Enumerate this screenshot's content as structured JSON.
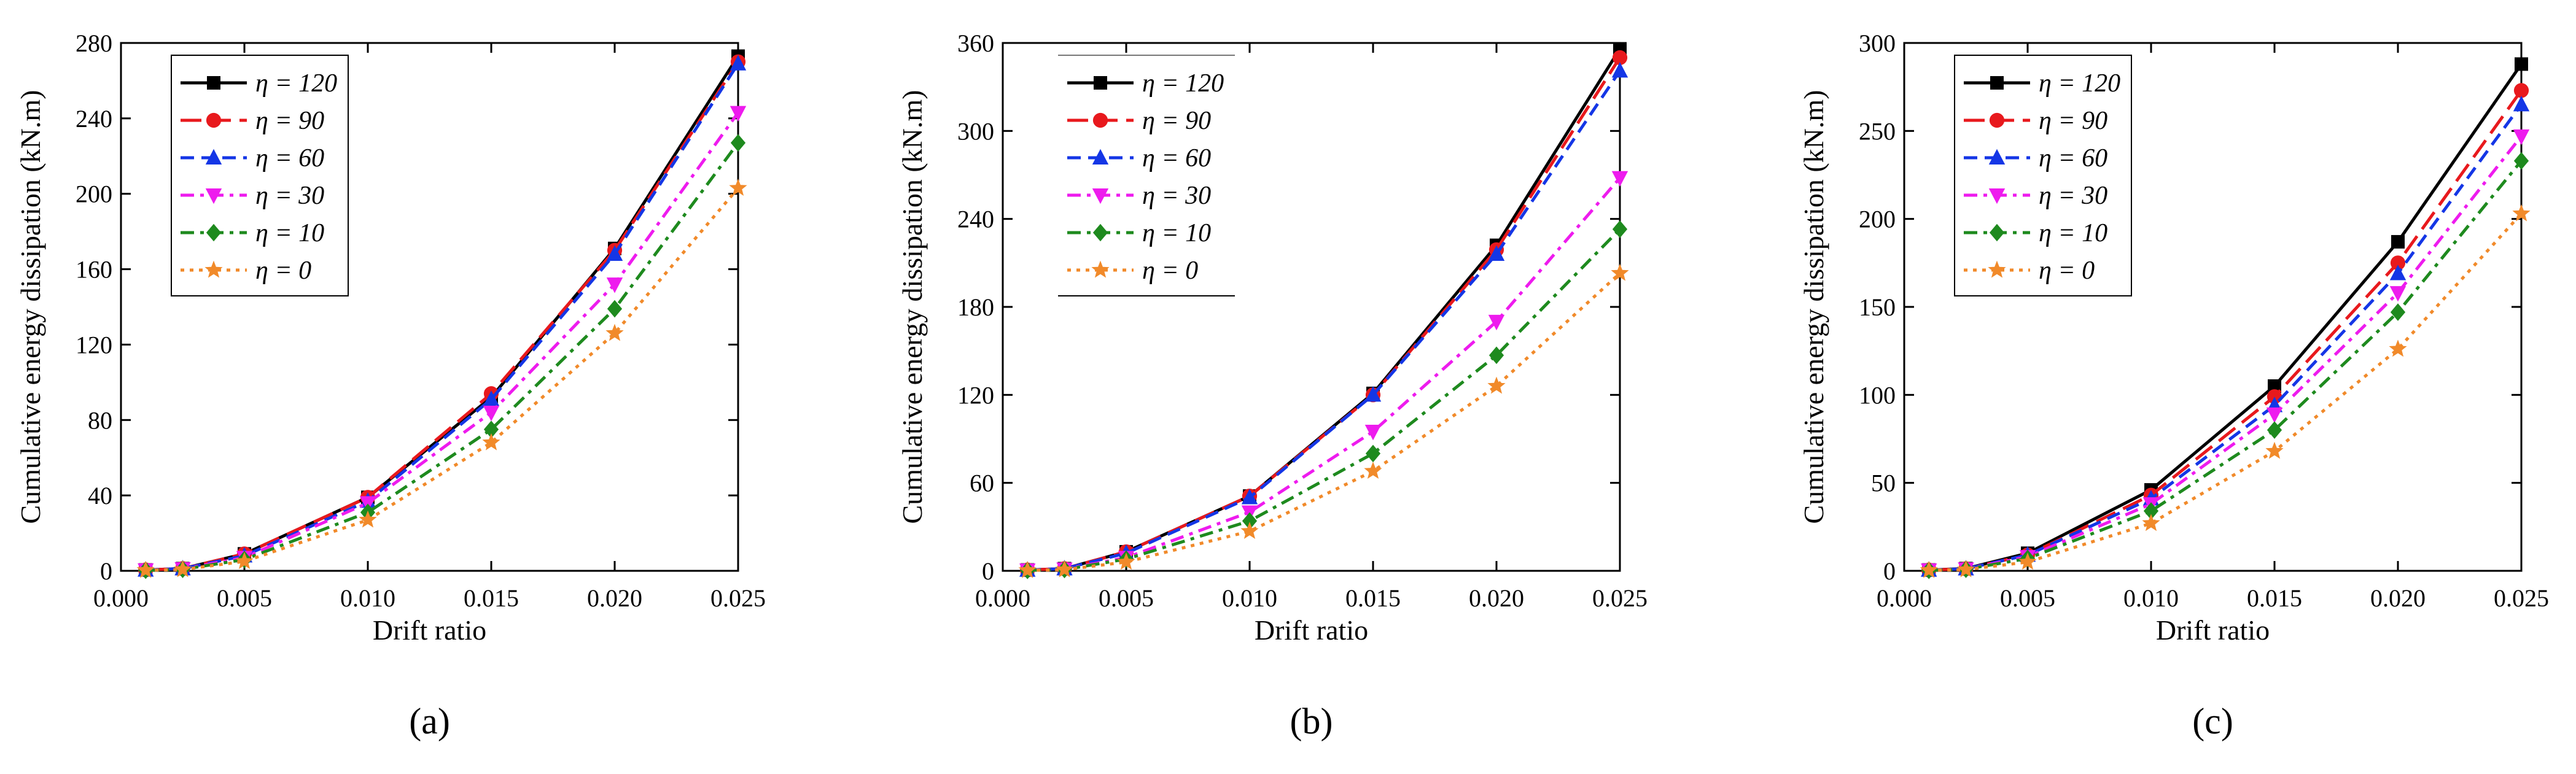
{
  "chart_data": [
    {
      "type": "line",
      "panel_label": "(a)",
      "xlabel": "Drift ratio",
      "ylabel": "Cumulative energy dissipation (kN.m)",
      "xlim": [
        0.0,
        0.025
      ],
      "ylim": [
        0,
        280
      ],
      "xticks": [
        0.0,
        0.005,
        0.01,
        0.015,
        0.02,
        0.025
      ],
      "xtick_labels": [
        "0.000",
        "0.005",
        "0.010",
        "0.015",
        "0.020",
        "0.025"
      ],
      "yticks": [
        0,
        40,
        80,
        120,
        160,
        200,
        240,
        280
      ],
      "ytick_labels": [
        "0",
        "40",
        "80",
        "120",
        "160",
        "200",
        "240",
        "280"
      ],
      "legend_position": "top-left",
      "x": [
        0.001,
        0.0025,
        0.005,
        0.01,
        0.015,
        0.02,
        0.025
      ],
      "series": [
        {
          "name": "η = 120",
          "eta": "120",
          "values": [
            0.5,
            1.2,
            9,
            39,
            92,
            171,
            273
          ]
        },
        {
          "name": "η = 90",
          "eta": "90",
          "values": [
            0.5,
            1.2,
            9,
            39,
            94,
            170,
            270
          ]
        },
        {
          "name": "η = 60",
          "eta": "60",
          "values": [
            0.5,
            1.2,
            8,
            37,
            91,
            168,
            269
          ]
        },
        {
          "name": "η = 30",
          "eta": "30",
          "values": [
            0.4,
            1.0,
            7,
            36,
            84,
            152,
            243
          ]
        },
        {
          "name": "η = 10",
          "eta": "10",
          "values": [
            0.3,
            0.8,
            6,
            31,
            75,
            139,
            227
          ]
        },
        {
          "name": "η = 0",
          "eta": "0",
          "values": [
            0.3,
            0.7,
            5,
            27,
            68,
            126,
            203
          ]
        }
      ]
    },
    {
      "type": "line",
      "panel_label": "(b)",
      "xlabel": "Drift ratio",
      "ylabel": "Cumulative energy dissipation (kN.m)",
      "xlim": [
        0.0,
        0.025
      ],
      "ylim": [
        0,
        360
      ],
      "xticks": [
        0.0,
        0.005,
        0.01,
        0.015,
        0.02,
        0.025
      ],
      "xtick_labels": [
        "0.000",
        "0.005",
        "0.010",
        "0.015",
        "0.020",
        "0.025"
      ],
      "yticks": [
        0,
        60,
        120,
        180,
        240,
        300,
        360
      ],
      "ytick_labels": [
        "0",
        "60",
        "120",
        "180",
        "240",
        "300",
        "360"
      ],
      "legend_position": "top-left",
      "x": [
        0.001,
        0.0025,
        0.005,
        0.01,
        0.015,
        0.02,
        0.025
      ],
      "series": [
        {
          "name": "η = 120",
          "eta": "120",
          "values": [
            0.6,
            1.5,
            13,
            51,
            121,
            222,
            356
          ]
        },
        {
          "name": "η = 90",
          "eta": "90",
          "values": [
            0.6,
            1.5,
            13,
            51,
            120,
            219,
            350
          ]
        },
        {
          "name": "η = 60",
          "eta": "60",
          "values": [
            0.6,
            1.5,
            12,
            50,
            120,
            216,
            341
          ]
        },
        {
          "name": "η = 30",
          "eta": "30",
          "values": [
            0.4,
            1.1,
            9,
            40,
            95,
            170,
            268
          ]
        },
        {
          "name": "η = 10",
          "eta": "10",
          "values": [
            0.3,
            0.9,
            8,
            34,
            80,
            147,
            233
          ]
        },
        {
          "name": "η = 0",
          "eta": "0",
          "values": [
            0.3,
            0.8,
            6,
            27,
            68,
            126,
            203
          ]
        }
      ]
    },
    {
      "type": "line",
      "panel_label": "(c)",
      "xlabel": "Drift ratio",
      "ylabel": "Cumulative energy dissipation (kN.m)",
      "xlim": [
        0.0,
        0.025
      ],
      "ylim": [
        0,
        300
      ],
      "xticks": [
        0.0,
        0.005,
        0.01,
        0.015,
        0.02,
        0.025
      ],
      "xtick_labels": [
        "0.000",
        "0.005",
        "0.010",
        "0.015",
        "0.020",
        "0.025"
      ],
      "yticks": [
        0,
        50,
        100,
        150,
        200,
        250,
        300
      ],
      "ytick_labels": [
        "0",
        "50",
        "100",
        "150",
        "200",
        "250",
        "300"
      ],
      "legend_position": "top-left",
      "x": [
        0.001,
        0.0025,
        0.005,
        0.01,
        0.015,
        0.02,
        0.025
      ],
      "series": [
        {
          "name": "η = 120",
          "eta": "120",
          "values": [
            0.5,
            1.3,
            10,
            46,
            105,
            187,
            288
          ]
        },
        {
          "name": "η = 90",
          "eta": "90",
          "values": [
            0.5,
            1.2,
            9,
            43,
            99,
            175,
            273
          ]
        },
        {
          "name": "η = 60",
          "eta": "60",
          "values": [
            0.5,
            1.2,
            9,
            41,
            94,
            169,
            265
          ]
        },
        {
          "name": "η = 30",
          "eta": "30",
          "values": [
            0.4,
            1.0,
            8,
            38,
            89,
            158,
            247
          ]
        },
        {
          "name": "η = 10",
          "eta": "10",
          "values": [
            0.3,
            0.9,
            7,
            34,
            80,
            147,
            233
          ]
        },
        {
          "name": "η = 0",
          "eta": "0",
          "values": [
            0.3,
            0.7,
            5,
            27,
            68,
            126,
            203
          ]
        }
      ]
    }
  ],
  "series_style": {
    "colors": [
      "#000000",
      "#e8191d",
      "#1436e6",
      "#ee1bee",
      "#1e8a1e",
      "#f18a2a"
    ],
    "markers": [
      "square",
      "circle",
      "triangle-up",
      "triangle-down",
      "diamond",
      "star"
    ],
    "dashes": [
      "solid",
      "long-dash",
      "dash",
      "dash-dot",
      "dash-dot",
      "dot"
    ]
  }
}
